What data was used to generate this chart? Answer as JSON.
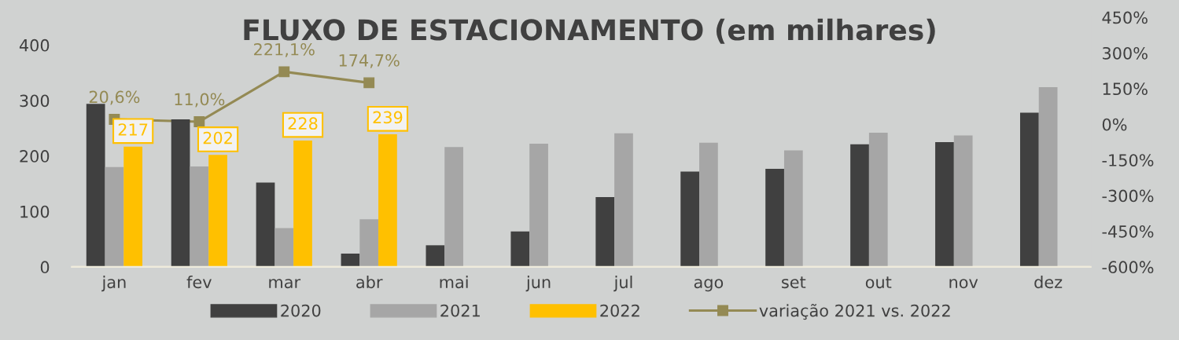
{
  "chart_data": {
    "type": "bar",
    "title": "FLUXO DE ESTACIONAMENTO (em milhares)",
    "categories": [
      "jan",
      "fev",
      "mar",
      "abr",
      "mai",
      "jun",
      "jul",
      "ago",
      "set",
      "out",
      "nov",
      "dez"
    ],
    "series": [
      {
        "name": "2020",
        "color": "#404040",
        "values": [
          294,
          266,
          152,
          24,
          39,
          64,
          126,
          172,
          177,
          221,
          225,
          278
        ]
      },
      {
        "name": "2021",
        "color": "#a6a6a6",
        "values": [
          180,
          181,
          70,
          86,
          216,
          222,
          241,
          224,
          210,
          242,
          237,
          324
        ]
      },
      {
        "name": "2022",
        "color": "#ffc000",
        "values": [
          217,
          202,
          228,
          239,
          null,
          null,
          null,
          null,
          null,
          null,
          null,
          null
        ],
        "value_labels": [
          "217",
          "202",
          "228",
          "239",
          null,
          null,
          null,
          null,
          null,
          null,
          null,
          null
        ]
      },
      {
        "name": "variação 2021 vs. 2022",
        "type": "line",
        "axis": "y2",
        "color": "#948a54",
        "marker": "square",
        "values": [
          20.6,
          11.0,
          221.1,
          174.7,
          null,
          null,
          null,
          null,
          null,
          null,
          null,
          null
        ],
        "value_labels": [
          "20,6%",
          "11,0%",
          "221,1%",
          "174,7%",
          null,
          null,
          null,
          null,
          null,
          null,
          null,
          null
        ]
      }
    ],
    "ylim": [
      0,
      450
    ],
    "yticks": [
      0,
      100,
      200,
      300,
      400
    ],
    "y2lim": [
      -600,
      450
    ],
    "y2ticks": [
      {
        "value": -600,
        "label": "-600%"
      },
      {
        "value": -450,
        "label": "-450%"
      },
      {
        "value": -300,
        "label": "-300%"
      },
      {
        "value": -150,
        "label": "-150%"
      },
      {
        "value": 0,
        "label": "0%"
      },
      {
        "value": 150,
        "label": "150%"
      },
      {
        "value": 300,
        "label": "300%"
      },
      {
        "value": 450,
        "label": "450%"
      }
    ],
    "grid": false,
    "legend": "bottom"
  }
}
